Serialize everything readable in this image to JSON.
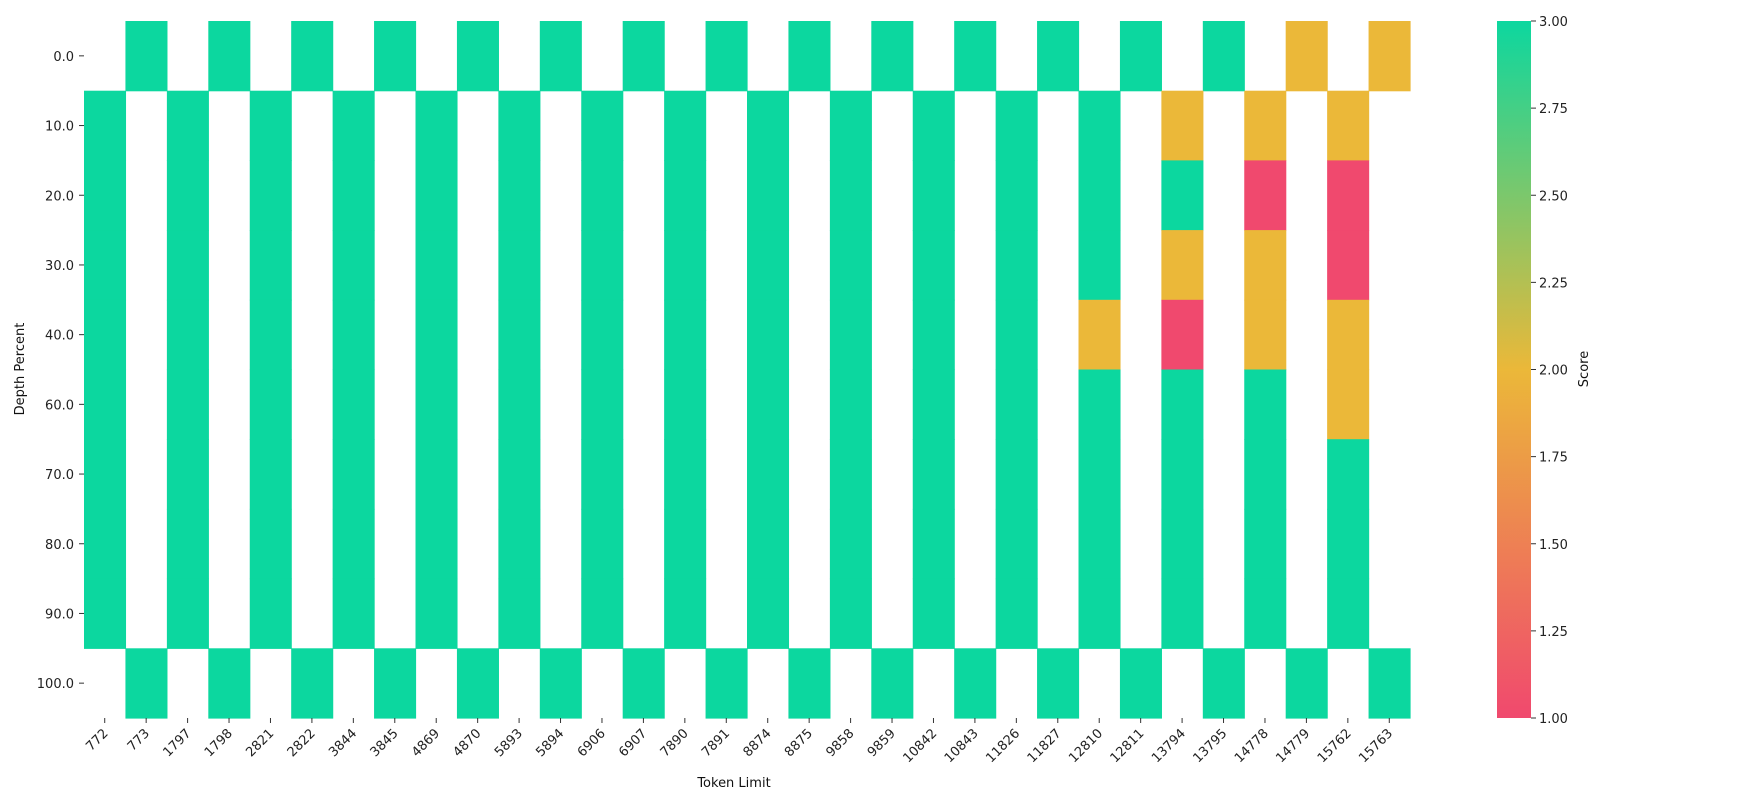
{
  "chart_data": {
    "type": "heatmap",
    "xlabel": "Token Limit",
    "ylabel": "Depth Percent",
    "x": [
      "772",
      "773",
      "1797",
      "1798",
      "2821",
      "2822",
      "3844",
      "3845",
      "4869",
      "4870",
      "5893",
      "5894",
      "6906",
      "6907",
      "7890",
      "7891",
      "8874",
      "8875",
      "9858",
      "9859",
      "10842",
      "10843",
      "11826",
      "11827",
      "12810",
      "12811",
      "13794",
      "13795",
      "14778",
      "14779",
      "15762",
      "15763"
    ],
    "y": [
      "0.0",
      "10.0",
      "20.0",
      "30.0",
      "40.0",
      "60.0",
      "70.0",
      "80.0",
      "90.0",
      "100.0"
    ],
    "values": [
      [
        null,
        3,
        null,
        3,
        null,
        3,
        null,
        3,
        null,
        3,
        null,
        3,
        null,
        3,
        null,
        3,
        null,
        3,
        null,
        3,
        null,
        3,
        null,
        3,
        null,
        3,
        null,
        3,
        null,
        2,
        null,
        2
      ],
      [
        3,
        null,
        3,
        null,
        3,
        null,
        3,
        null,
        3,
        null,
        3,
        null,
        3,
        null,
        3,
        null,
        3,
        null,
        3,
        null,
        3,
        null,
        3,
        null,
        3,
        null,
        2,
        null,
        2,
        null,
        2,
        null
      ],
      [
        3,
        null,
        3,
        null,
        3,
        null,
        3,
        null,
        3,
        null,
        3,
        null,
        3,
        null,
        3,
        null,
        3,
        null,
        3,
        null,
        3,
        null,
        3,
        null,
        3,
        null,
        3,
        null,
        1,
        null,
        1,
        null
      ],
      [
        3,
        null,
        3,
        null,
        3,
        null,
        3,
        null,
        3,
        null,
        3,
        null,
        3,
        null,
        3,
        null,
        3,
        null,
        3,
        null,
        3,
        null,
        3,
        null,
        3,
        null,
        2,
        null,
        2,
        null,
        1,
        null
      ],
      [
        3,
        null,
        3,
        null,
        3,
        null,
        3,
        null,
        3,
        null,
        3,
        null,
        3,
        null,
        3,
        null,
        3,
        null,
        3,
        null,
        3,
        null,
        3,
        null,
        2,
        null,
        1,
        null,
        2,
        null,
        2,
        null
      ],
      [
        3,
        null,
        3,
        null,
        3,
        null,
        3,
        null,
        3,
        null,
        3,
        null,
        3,
        null,
        3,
        null,
        3,
        null,
        3,
        null,
        3,
        null,
        3,
        null,
        3,
        null,
        3,
        null,
        3,
        null,
        2,
        null
      ],
      [
        3,
        null,
        3,
        null,
        3,
        null,
        3,
        null,
        3,
        null,
        3,
        null,
        3,
        null,
        3,
        null,
        3,
        null,
        3,
        null,
        3,
        null,
        3,
        null,
        3,
        null,
        3,
        null,
        3,
        null,
        3,
        null
      ],
      [
        3,
        null,
        3,
        null,
        3,
        null,
        3,
        null,
        3,
        null,
        3,
        null,
        3,
        null,
        3,
        null,
        3,
        null,
        3,
        null,
        3,
        null,
        3,
        null,
        3,
        null,
        3,
        null,
        3,
        null,
        3,
        null
      ],
      [
        3,
        null,
        3,
        null,
        3,
        null,
        3,
        null,
        3,
        null,
        3,
        null,
        3,
        null,
        3,
        null,
        3,
        null,
        3,
        null,
        3,
        null,
        3,
        null,
        3,
        null,
        3,
        null,
        3,
        null,
        3,
        null
      ],
      [
        null,
        3,
        null,
        3,
        null,
        3,
        null,
        3,
        null,
        3,
        null,
        3,
        null,
        3,
        null,
        3,
        null,
        3,
        null,
        3,
        null,
        3,
        null,
        3,
        null,
        3,
        null,
        3,
        null,
        3,
        null,
        3
      ]
    ],
    "colorbar": {
      "label": "Score",
      "vmin": 1.0,
      "vmax": 3.0,
      "ticks": [
        "1.00",
        "1.25",
        "1.50",
        "1.75",
        "2.00",
        "2.25",
        "2.50",
        "2.75",
        "3.00"
      ],
      "colors": [
        "#f0496e",
        "#ebb839",
        "#0cd79f"
      ]
    },
    "grid": false
  }
}
